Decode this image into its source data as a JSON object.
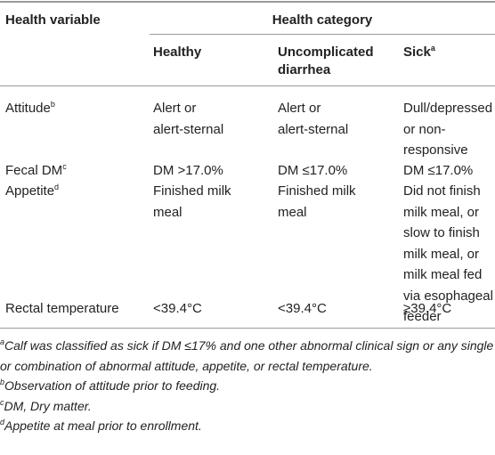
{
  "header": {
    "variable": "Health variable",
    "group": "Health category",
    "columns": [
      {
        "lines": [
          "Healthy"
        ]
      },
      {
        "lines": [
          "Uncomplicated",
          "diarrhea"
        ]
      },
      {
        "lines": [
          "Sick"
        ],
        "sup": "a"
      }
    ]
  },
  "table": {
    "rows": [
      [
        {
          "lines": [
            "Attitude"
          ],
          "sup": "b"
        },
        {
          "lines": [
            "Alert or",
            "alert-sternal"
          ]
        },
        {
          "lines": [
            "Alert or",
            "alert-sternal"
          ]
        },
        {
          "lines": [
            "Dull/depressed",
            "or non-",
            "responsive"
          ]
        }
      ],
      [
        {
          "lines": [
            "Fecal DM"
          ],
          "sup": "c"
        },
        {
          "lines": [
            "DM >17.0%"
          ]
        },
        {
          "lines": [
            "DM ≤17.0%"
          ]
        },
        {
          "lines": [
            "DM ≤17.0%"
          ]
        }
      ],
      [
        {
          "lines": [
            "Appetite"
          ],
          "sup": "d"
        },
        {
          "lines": [
            "Finished milk",
            "meal"
          ]
        },
        {
          "lines": [
            "Finished milk",
            "meal"
          ]
        },
        {
          "lines": [
            "Did not finish",
            "milk meal, or",
            "slow to finish",
            "milk meal, or",
            "milk meal fed",
            "via esophageal",
            "feeder"
          ]
        }
      ],
      [
        {
          "lines": [
            "Rectal temperature"
          ]
        },
        {
          "lines": [
            "<39.4°C"
          ]
        },
        {
          "lines": [
            "<39.4°C"
          ]
        },
        {
          "lines": [
            "≥39.4°C"
          ]
        }
      ]
    ]
  },
  "footnotes": [
    {
      "marker": "a",
      "lines": [
        "Calf was classified as sick if DM ≤17% and one other abnormal clinical sign or any single",
        "or combination of abnormal attitude, appetite, or rectal temperature."
      ]
    },
    {
      "marker": "b",
      "lines": [
        "Observation of attitude prior to feeding."
      ]
    },
    {
      "marker": "c",
      "lines": [
        "DM, Dry matter."
      ]
    },
    {
      "marker": "d",
      "lines": [
        "Appetite at meal prior to enrollment."
      ]
    }
  ]
}
